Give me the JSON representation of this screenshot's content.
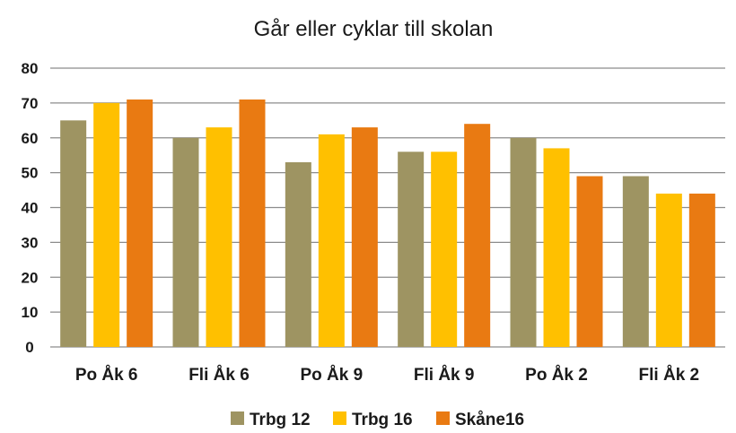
{
  "chart_data": {
    "type": "bar",
    "title": "Går eller cyklar till skolan",
    "xlabel": "",
    "ylabel": "",
    "categories": [
      "Po Åk 6",
      "Fli Åk 6",
      "Po Åk 9",
      "Fli Åk 9",
      "Po Åk 2",
      "Fli Åk 2"
    ],
    "series": [
      {
        "name": "Trbg 12",
        "color": "#9e9462",
        "values": [
          65,
          60,
          53,
          56,
          60,
          49
        ]
      },
      {
        "name": "Trbg 16",
        "color": "#ffc000",
        "values": [
          70,
          63,
          61,
          56,
          57,
          44
        ]
      },
      {
        "name": "Skåne16",
        "color": "#e97a12",
        "values": [
          71,
          71,
          63,
          64,
          49,
          44
        ]
      }
    ],
    "ylim": [
      0,
      80
    ],
    "yticks": [
      0,
      10,
      20,
      30,
      40,
      50,
      60,
      70,
      80
    ],
    "grid": true,
    "legend": "bottom"
  }
}
